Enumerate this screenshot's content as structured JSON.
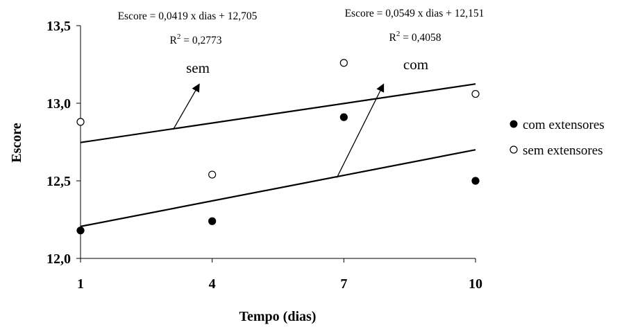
{
  "chart_data": {
    "type": "scatter",
    "xlabel": "Tempo (dias)",
    "ylabel": "Escore",
    "x_ticks": [
      "1",
      "4",
      "7",
      "10"
    ],
    "y_ticks": [
      "12,0",
      "12,5",
      "13,0",
      "13,5"
    ],
    "xlim": [
      1,
      10
    ],
    "ylim": [
      12.0,
      13.5
    ],
    "grid": false,
    "legend_position": "right",
    "series": [
      {
        "name": "com extensores",
        "marker": "filled-circle",
        "color": "#000000",
        "x": [
          1,
          4,
          7,
          10
        ],
        "y": [
          12.18,
          12.24,
          12.91,
          12.5
        ],
        "trendline": {
          "slope": 0.0549,
          "intercept": 12.151
        }
      },
      {
        "name": "sem extensores",
        "marker": "open-circle",
        "color": "#000000",
        "x": [
          1,
          4,
          7,
          10
        ],
        "y": [
          12.88,
          12.54,
          13.26,
          13.06
        ],
        "trendline": {
          "slope": 0.0419,
          "intercept": 12.705
        }
      }
    ],
    "annotations": {
      "sem": {
        "equation_prefix": "Escore = 0,0419 x dias + 12,705",
        "r2_prefix": "R",
        "r2_exp": "2",
        "r2_value": " = 0,2773",
        "label": "sem",
        "arrow_from": [
          3.11,
          12.83
        ],
        "arrow_to": [
          3.7,
          13.12
        ]
      },
      "com": {
        "equation_prefix": "Escore = 0,0549 x dias + 12,151",
        "r2_prefix": "R",
        "r2_exp": "2",
        "r2_value": " = 0,4058",
        "label": "com",
        "arrow_from": [
          6.84,
          12.52
        ],
        "arrow_to": [
          7.9,
          13.12
        ]
      }
    }
  }
}
